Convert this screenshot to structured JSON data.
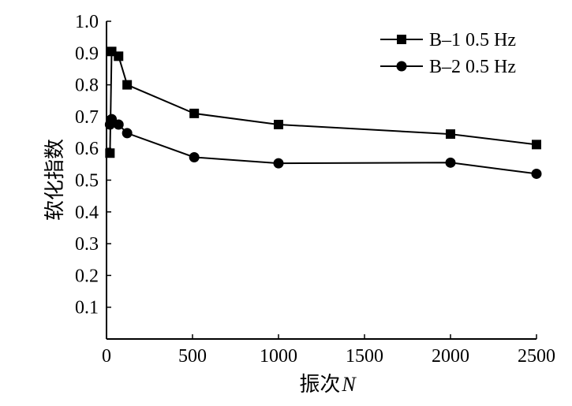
{
  "chart_data": {
    "type": "line",
    "xlabel": "振次",
    "xlabel_var": "N",
    "ylabel": "软化指数",
    "xlim": [
      0,
      2500
    ],
    "ylim": [
      0,
      1.0
    ],
    "xticks": [
      0,
      500,
      1000,
      1500,
      2000,
      2500
    ],
    "yticks": [
      0.1,
      0.2,
      0.3,
      0.4,
      0.5,
      0.6,
      0.7,
      0.8,
      0.9,
      1.0
    ],
    "xtick_labels": [
      "0",
      "500",
      "1000",
      "1500",
      "2000",
      "2500"
    ],
    "ytick_labels": [
      "0.1",
      "0.2",
      "0.3",
      "0.4",
      "0.5",
      "0.6",
      "0.7",
      "0.8",
      "0.9",
      "1.0"
    ],
    "grid": false,
    "legend_position": "top-right",
    "series": [
      {
        "name": "B–1 0.5 Hz",
        "marker": "square",
        "color": "#000000",
        "x": [
          20,
          30,
          70,
          120,
          510,
          1000,
          2000,
          2500
        ],
        "y": [
          0.585,
          0.905,
          0.89,
          0.8,
          0.71,
          0.675,
          0.645,
          0.612
        ]
      },
      {
        "name": "B–2 0.5 Hz",
        "marker": "circle",
        "color": "#000000",
        "x": [
          20,
          30,
          70,
          120,
          510,
          1000,
          2000,
          2500
        ],
        "y": [
          0.675,
          0.692,
          0.675,
          0.648,
          0.572,
          0.553,
          0.555,
          0.52
        ]
      }
    ]
  }
}
